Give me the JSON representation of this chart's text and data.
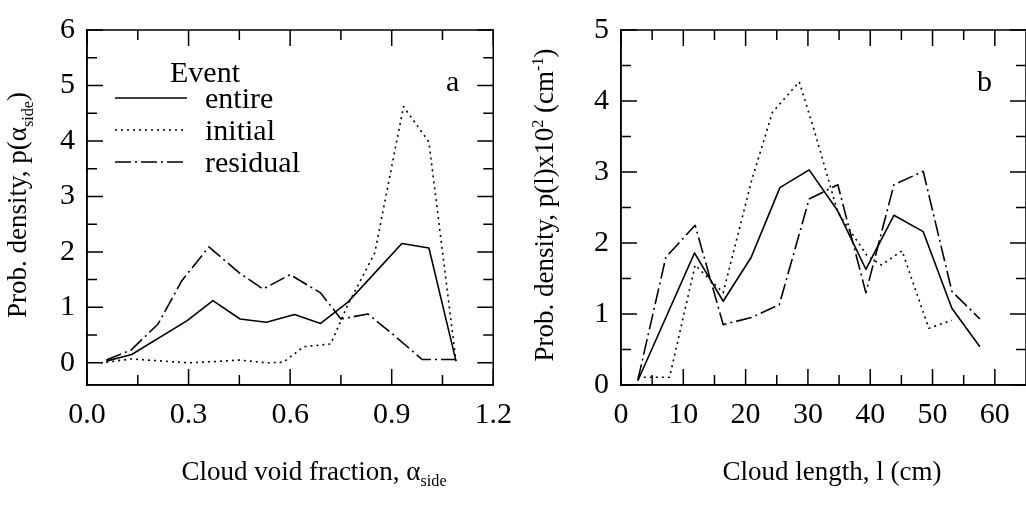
{
  "chart_data": [
    {
      "type": "line",
      "xlabel": "Cloud void fraction, α$_{side}$",
      "ylabel": "Prob. density, p(α$_{side}$)",
      "xlim": [
        0,
        1.2
      ],
      "xticks": [
        {
          "value": 0,
          "label": "0.0"
        },
        {
          "value": 0.15,
          "label": null
        },
        {
          "value": 0.3,
          "label": "0.3"
        },
        {
          "value": 0.45,
          "label": null
        },
        {
          "value": 0.6,
          "label": "0.6"
        },
        {
          "value": 0.75,
          "label": null
        },
        {
          "value": 0.9,
          "label": "0.9"
        },
        {
          "value": 1.05,
          "label": null
        },
        {
          "value": 1.2,
          "label": "1.2"
        }
      ],
      "ylim": [
        -0.4,
        6
      ],
      "yticks": [
        0,
        {
          "value": 0.5,
          "label": null
        },
        1,
        {
          "value": 1.5,
          "label": null
        },
        2,
        {
          "value": 2.5,
          "label": null
        },
        3,
        {
          "value": 3.5,
          "label": null
        },
        4,
        {
          "value": 4.5,
          "label": null
        },
        5,
        {
          "value": 5.5,
          "label": null
        },
        6
      ],
      "grid": false,
      "marker": "none",
      "legend": "top left",
      "legend_title": "Event",
      "annotations": [
        "a"
      ],
      "series": [
        {
          "name": "entire",
          "color": "#000000",
          "line_style": "solid",
          "x": [
            0.057,
            0.132,
            0.296,
            0.372,
            0.452,
            0.53,
            0.613,
            0.69,
            0.77,
            0.93,
            1.01,
            1.09
          ],
          "values": [
            0.03,
            0.15,
            0.76,
            1.12,
            0.79,
            0.73,
            0.87,
            0.71,
            1.09,
            2.15,
            2.07,
            0.03
          ]
        },
        {
          "name": "initial",
          "color": "#000000",
          "line_style": "dotted",
          "x": [
            0.057,
            0.13,
            0.3,
            0.37,
            0.45,
            0.53,
            0.58,
            0.64,
            0.72,
            0.77,
            0.85,
            0.935,
            1.01,
            1.09
          ],
          "values": [
            0.01,
            0.07,
            0.0,
            0.02,
            0.05,
            0.0,
            0.01,
            0.29,
            0.34,
            1.04,
            1.98,
            4.62,
            3.98,
            0.03
          ]
        },
        {
          "name": "residual",
          "color": "#000000",
          "line_style": "dashdot",
          "x": [
            0.057,
            0.13,
            0.21,
            0.28,
            0.36,
            0.45,
            0.52,
            0.6,
            0.69,
            0.75,
            0.83,
            0.91,
            0.99,
            1.09
          ],
          "values": [
            0.05,
            0.23,
            0.7,
            1.48,
            2.09,
            1.62,
            1.33,
            1.59,
            1.26,
            0.79,
            0.88,
            0.48,
            0.06,
            0.06
          ]
        }
      ]
    },
    {
      "type": "line",
      "xlabel": "Cloud length, l (cm)",
      "ylabel": "Prob. density, p(l)x10$^{2}$ (cm$^{-1}$)",
      "xlim": [
        0,
        65
      ],
      "xticks": [
        0,
        {
          "value": 5,
          "label": null
        },
        10,
        {
          "value": 15,
          "label": null
        },
        20,
        {
          "value": 25,
          "label": null
        },
        30,
        {
          "value": 35,
          "label": null
        },
        40,
        {
          "value": 45,
          "label": null
        },
        50,
        {
          "value": 55,
          "label": null
        },
        60
      ],
      "ylim": [
        0,
        5
      ],
      "yticks": [
        0,
        {
          "value": 0.5,
          "label": null
        },
        1,
        {
          "value": 1.5,
          "label": null
        },
        2,
        {
          "value": 2.5,
          "label": null
        },
        3,
        {
          "value": 3.5,
          "label": null
        },
        4,
        {
          "value": 4.5,
          "label": null
        },
        5
      ],
      "grid": false,
      "marker": "none",
      "annotations": [
        "b"
      ],
      "series": [
        {
          "color": "#000000",
          "line_style": "solid",
          "x": [
            2.7,
            11.8,
            16.4,
            20.9,
            25.5,
            30.2,
            34.8,
            39.3,
            43.8,
            48.5,
            53.1,
            57.6
          ],
          "values": [
            0.06,
            1.86,
            1.18,
            1.8,
            2.78,
            3.03,
            2.45,
            1.63,
            2.39,
            2.16,
            1.08,
            0.54
          ]
        },
        {
          "color": "#000000",
          "line_style": "dotted",
          "x": [
            2.7,
            7.8,
            11.9,
            16.4,
            20.9,
            24.3,
            28.6,
            31.1,
            34.8,
            39.5,
            41.8,
            45.1,
            49.4,
            53.1
          ],
          "values": [
            0.11,
            0.11,
            1.69,
            1.3,
            2.86,
            3.84,
            4.27,
            3.56,
            2.43,
            1.82,
            1.69,
            1.89,
            0.8,
            0.91
          ]
        },
        {
          "color": "#000000",
          "line_style": "dashdot",
          "x": [
            2.7,
            7.2,
            11.9,
            16.4,
            20.9,
            25.4,
            30.2,
            34.8,
            39.3,
            43.8,
            48.5,
            53.1,
            57.6
          ],
          "values": [
            0.07,
            1.8,
            2.25,
            0.85,
            0.95,
            1.13,
            2.62,
            2.82,
            1.3,
            2.82,
            3.01,
            1.32,
            0.93
          ]
        }
      ]
    }
  ]
}
